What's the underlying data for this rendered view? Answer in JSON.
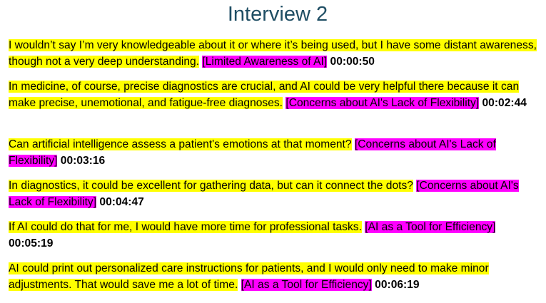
{
  "title": "Interview 2",
  "entries": [
    {
      "text": "I wouldn’t say I’m very knowledgeable about it or where it’s being used, but I have some distant awareness, though not a very deep understanding.",
      "tag": "[Limited Awareness of AI]",
      "time": "00:00:50"
    },
    {
      "text": "In medicine, of course, precise diagnostics are crucial, and AI could be very helpful there because it can make precise, unemotional, and fatigue-free diagnoses.",
      "tag": "[Concerns about AI's Lack of Flexibility]",
      "time": "00:02:44"
    },
    {
      "text": "Can artificial intelligence assess a patient's emotions at that moment?",
      "tag": "[Concerns about AI's Lack of Flexibility]",
      "time": "00:03:16"
    },
    {
      "text": "In diagnostics, it could be excellent for gathering data, but can it connect the dots?",
      "tag": "[Concerns about AI's Lack of Flexibility]",
      "time": "00:04:47"
    },
    {
      "text": "If AI could do that for me, I would have more time for professional tasks.",
      "tag": "[AI as a Tool for Efficiency]",
      "time": "00:05:19"
    },
    {
      "text": "AI could print out personalized care instructions for patients, and I would only need to make minor adjustments. That would save me a lot of time.",
      "tag": "[AI as a Tool for Efficiency]",
      "time": "00:06:19"
    }
  ]
}
